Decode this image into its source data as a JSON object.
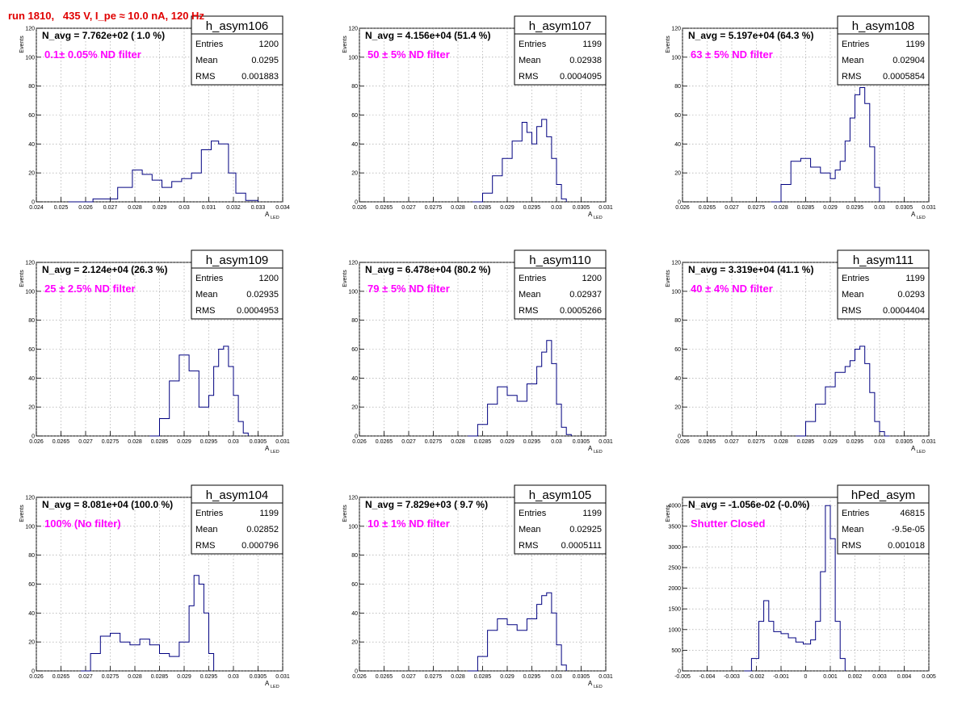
{
  "page": {
    "title": "run 1810,   435 V, I_pe ≈ 10.0 nA, 120 Hz"
  },
  "colors": {
    "title": "#e00000",
    "annotation": "#ff00ff",
    "histogram": "#000080",
    "grid": "#999999"
  },
  "chart_data": [
    {
      "type": "bar",
      "name": "h_asym106",
      "navg": "N_avg = 7.762e+02 ( 1.0 %)",
      "annotation": "0.1± 0.05% ND filter",
      "xlabel": "A",
      "xlabel_sub": "LED",
      "ylabel": "Events",
      "xlim": [
        0.024,
        0.034
      ],
      "ylim": [
        0,
        120
      ],
      "xticks": [
        "0.024",
        "0.025",
        "0.026",
        "0.027",
        "0.028",
        "0.029",
        "0.03",
        "0.031",
        "0.032",
        "0.033",
        "0.034"
      ],
      "yticks": [
        "0",
        "20",
        "40",
        "60",
        "80",
        "100",
        "120"
      ],
      "stats": [
        [
          "Entries",
          "1200"
        ],
        [
          "Mean",
          "0.0295"
        ],
        [
          "RMS",
          "0.001883"
        ]
      ],
      "bins_x": [
        [
          0.0253,
          0.0263,
          0.0273,
          0.0279,
          0.0283,
          0.0287,
          0.0291,
          0.0295,
          0.0299,
          0.0303,
          0.0307,
          0.0311,
          0.0314,
          0.0318,
          0.0321,
          0.0325,
          0.033
        ]
      ],
      "bins_y": [
        [
          0,
          2,
          10,
          22,
          19,
          15,
          10,
          14,
          16,
          20,
          36,
          42,
          40,
          20,
          6,
          1,
          0
        ]
      ]
    },
    {
      "type": "bar",
      "name": "h_asym107",
      "navg": "N_avg = 4.156e+04 (51.4 %)",
      "annotation": "50 ± 5% ND filter",
      "xlabel": "A",
      "xlabel_sub": "LED",
      "ylabel": "Events",
      "xlim": [
        0.026,
        0.031
      ],
      "ylim": [
        0,
        120
      ],
      "xticks": [
        "0.026",
        "0.0265",
        "0.027",
        "0.0275",
        "0.028",
        "0.0285",
        "0.029",
        "0.0295",
        "0.03",
        "0.0305",
        "0.031"
      ],
      "yticks": [
        "0",
        "20",
        "40",
        "60",
        "80",
        "100",
        "120"
      ],
      "stats": [
        [
          "Entries",
          "1199"
        ],
        [
          "Mean",
          "0.02938"
        ],
        [
          "RMS",
          "0.0004095"
        ]
      ],
      "bins_x": [
        [
          0.0283,
          0.0285,
          0.0287,
          0.0289,
          0.0291,
          0.0293,
          0.0294,
          0.0295,
          0.0296,
          0.0297,
          0.0298,
          0.0299,
          0.03,
          0.0301,
          0.0302
        ]
      ],
      "bins_y": [
        [
          0,
          6,
          18,
          30,
          42,
          55,
          48,
          40,
          52,
          57,
          45,
          30,
          12,
          2,
          0
        ]
      ]
    },
    {
      "type": "bar",
      "name": "h_asym108",
      "navg": "N_avg = 5.197e+04 (64.3 %)",
      "annotation": "63 ± 5% ND filter",
      "xlabel": "A",
      "xlabel_sub": "LED",
      "ylabel": "Events",
      "xlim": [
        0.026,
        0.031
      ],
      "ylim": [
        0,
        120
      ],
      "xticks": [
        "0.026",
        "0.0265",
        "0.027",
        "0.0275",
        "0.028",
        "0.0285",
        "0.029",
        "0.0295",
        "0.03",
        "0.0305",
        "0.031"
      ],
      "yticks": [
        "0",
        "20",
        "40",
        "60",
        "80",
        "100",
        "120"
      ],
      "stats": [
        [
          "Entries",
          "1199"
        ],
        [
          "Mean",
          "0.02904"
        ],
        [
          "RMS",
          "0.0005854"
        ]
      ],
      "bins_x": [
        [
          0.0278,
          0.028,
          0.0282,
          0.0284,
          0.0286,
          0.0288,
          0.029,
          0.0291,
          0.0292,
          0.0293,
          0.0294,
          0.0295,
          0.0296,
          0.0297,
          0.0298,
          0.0299,
          0.03
        ]
      ],
      "bins_y": [
        [
          0,
          12,
          28,
          30,
          24,
          20,
          16,
          22,
          28,
          42,
          58,
          74,
          79,
          68,
          38,
          10,
          0
        ]
      ]
    },
    {
      "type": "bar",
      "name": "h_asym109",
      "navg": "N_avg = 2.124e+04 (26.3 %)",
      "annotation": "25 ± 2.5% ND filter",
      "xlabel": "A",
      "xlabel_sub": "LED",
      "ylabel": "Events",
      "xlim": [
        0.026,
        0.031
      ],
      "ylim": [
        0,
        120
      ],
      "xticks": [
        "0.026",
        "0.0265",
        "0.027",
        "0.0275",
        "0.028",
        "0.0285",
        "0.029",
        "0.0295",
        "0.03",
        "0.0305",
        "0.031"
      ],
      "yticks": [
        "0",
        "20",
        "40",
        "60",
        "80",
        "100",
        "120"
      ],
      "stats": [
        [
          "Entries",
          "1200"
        ],
        [
          "Mean",
          "0.02935"
        ],
        [
          "RMS",
          "0.0004953"
        ]
      ],
      "bins_x": [
        [
          0.0283,
          0.0285,
          0.0287,
          0.0289,
          0.0291,
          0.0293,
          0.0295,
          0.0296,
          0.0297,
          0.0298,
          0.0299,
          0.03,
          0.0301,
          0.0302,
          0.0303
        ]
      ],
      "bins_y": [
        [
          0,
          12,
          38,
          56,
          45,
          20,
          28,
          48,
          60,
          62,
          48,
          28,
          10,
          2,
          0
        ]
      ]
    },
    {
      "type": "bar",
      "name": "h_asym110",
      "navg": "N_avg = 6.478e+04 (80.2 %)",
      "annotation": "79 ± 5% ND filter",
      "xlabel": "A",
      "xlabel_sub": "LED",
      "ylabel": "Events",
      "xlim": [
        0.026,
        0.031
      ],
      "ylim": [
        0,
        120
      ],
      "xticks": [
        "0.026",
        "0.0265",
        "0.027",
        "0.0275",
        "0.028",
        "0.0285",
        "0.029",
        "0.0295",
        "0.03",
        "0.0305",
        "0.031"
      ],
      "yticks": [
        "0",
        "20",
        "40",
        "60",
        "80",
        "100",
        "120"
      ],
      "stats": [
        [
          "Entries",
          "1200"
        ],
        [
          "Mean",
          "0.02937"
        ],
        [
          "RMS",
          "0.0005266"
        ]
      ],
      "bins_x": [
        [
          0.0282,
          0.0284,
          0.0286,
          0.0288,
          0.029,
          0.0292,
          0.0294,
          0.0296,
          0.0297,
          0.0298,
          0.0299,
          0.03,
          0.0301,
          0.0302,
          0.0303
        ]
      ],
      "bins_y": [
        [
          0,
          8,
          22,
          34,
          28,
          24,
          36,
          48,
          58,
          66,
          50,
          22,
          6,
          1,
          0
        ]
      ]
    },
    {
      "type": "bar",
      "name": "h_asym111",
      "navg": "N_avg = 3.319e+04 (41.1 %)",
      "annotation": "40 ± 4% ND filter",
      "xlabel": "A",
      "xlabel_sub": "LED",
      "ylabel": "Events",
      "xlim": [
        0.026,
        0.031
      ],
      "ylim": [
        0,
        120
      ],
      "xticks": [
        "0.026",
        "0.0265",
        "0.027",
        "0.0275",
        "0.028",
        "0.0285",
        "0.029",
        "0.0295",
        "0.03",
        "0.0305",
        "0.031"
      ],
      "yticks": [
        "0",
        "20",
        "40",
        "60",
        "80",
        "100",
        "120"
      ],
      "stats": [
        [
          "Entries",
          "1199"
        ],
        [
          "Mean",
          "0.0293"
        ],
        [
          "RMS",
          "0.0004404"
        ]
      ],
      "bins_x": [
        [
          0.0283,
          0.0285,
          0.0287,
          0.0289,
          0.0291,
          0.0293,
          0.0294,
          0.0295,
          0.0296,
          0.0297,
          0.0298,
          0.0299,
          0.03,
          0.0301,
          0.0302
        ]
      ],
      "bins_y": [
        [
          0,
          10,
          22,
          34,
          44,
          48,
          52,
          60,
          62,
          50,
          30,
          10,
          3,
          0,
          0
        ]
      ]
    },
    {
      "type": "bar",
      "name": "h_asym104",
      "navg": "N_avg = 8.081e+04 (100.0 %)",
      "annotation": "100% (No filter)",
      "xlabel": "A",
      "xlabel_sub": "LED",
      "ylabel": "Events",
      "xlim": [
        0.026,
        0.031
      ],
      "ylim": [
        0,
        120
      ],
      "xticks": [
        "0.026",
        "0.0265",
        "0.027",
        "0.0275",
        "0.028",
        "0.0285",
        "0.029",
        "0.0295",
        "0.03",
        "0.0305",
        "0.031"
      ],
      "yticks": [
        "0",
        "20",
        "40",
        "60",
        "80",
        "100",
        "120"
      ],
      "stats": [
        [
          "Entries",
          "1199"
        ],
        [
          "Mean",
          "0.02852"
        ],
        [
          "RMS",
          "0.000796"
        ]
      ],
      "bins_x": [
        [
          0.0269,
          0.0271,
          0.0273,
          0.0275,
          0.0277,
          0.0279,
          0.0281,
          0.0283,
          0.0285,
          0.0287,
          0.0289,
          0.0291,
          0.0292,
          0.0293,
          0.0294,
          0.0295,
          0.0296
        ]
      ],
      "bins_y": [
        [
          0,
          12,
          24,
          26,
          20,
          18,
          22,
          18,
          12,
          10,
          20,
          45,
          66,
          60,
          40,
          12,
          0
        ]
      ]
    },
    {
      "type": "bar",
      "name": "h_asym105",
      "navg": "N_avg = 7.829e+03 ( 9.7 %)",
      "annotation": "10 ± 1% ND filter",
      "xlabel": "A",
      "xlabel_sub": "LED",
      "ylabel": "Events",
      "xlim": [
        0.026,
        0.031
      ],
      "ylim": [
        0,
        120
      ],
      "xticks": [
        "0.026",
        "0.0265",
        "0.027",
        "0.0275",
        "0.028",
        "0.0285",
        "0.029",
        "0.0295",
        "0.03",
        "0.0305",
        "0.031"
      ],
      "yticks": [
        "0",
        "20",
        "40",
        "60",
        "80",
        "100",
        "120"
      ],
      "stats": [
        [
          "Entries",
          "1199"
        ],
        [
          "Mean",
          "0.02925"
        ],
        [
          "RMS",
          "0.0005111"
        ]
      ],
      "bins_x": [
        [
          0.0282,
          0.0284,
          0.0286,
          0.0288,
          0.029,
          0.0292,
          0.0294,
          0.0296,
          0.0297,
          0.0298,
          0.0299,
          0.03,
          0.0301,
          0.0302
        ]
      ],
      "bins_y": [
        [
          0,
          10,
          28,
          36,
          32,
          28,
          36,
          46,
          52,
          54,
          40,
          18,
          4,
          0
        ]
      ]
    },
    {
      "type": "bar",
      "name": "hPed_asym",
      "navg": "N_avg = -1.056e-02 (-0.0%)",
      "annotation": "Shutter Closed",
      "xlabel": "",
      "xlabel_sub": "",
      "ylabel": "Events",
      "xlim": [
        -0.005,
        0.005
      ],
      "ylim": [
        0,
        4200
      ],
      "xticks": [
        "-0.005",
        "-0.004",
        "-0.003",
        "-0.002",
        "-0.001",
        "0",
        "0.001",
        "0.002",
        "0.003",
        "0.004",
        "0.005"
      ],
      "yticks": [
        "0",
        "500",
        "1000",
        "1500",
        "2000",
        "2500",
        "3000",
        "3500",
        "4000"
      ],
      "stats": [
        [
          "Entries",
          "46815"
        ],
        [
          "Mean",
          "-9.5e-05"
        ],
        [
          "RMS",
          "0.001018"
        ]
      ],
      "bins_x": [
        [
          -0.0025,
          -0.0022,
          -0.0019,
          -0.0017,
          -0.0015,
          -0.0013,
          -0.001,
          -0.0007,
          -0.0004,
          -0.0001,
          0.0002,
          0.0004,
          0.0006,
          0.0008,
          0.001,
          0.0012,
          0.0014,
          0.0016
        ]
      ],
      "bins_y": [
        [
          0,
          300,
          1200,
          1700,
          1200,
          950,
          900,
          800,
          700,
          650,
          750,
          1200,
          2400,
          4000,
          3200,
          1200,
          300,
          0
        ]
      ]
    }
  ]
}
